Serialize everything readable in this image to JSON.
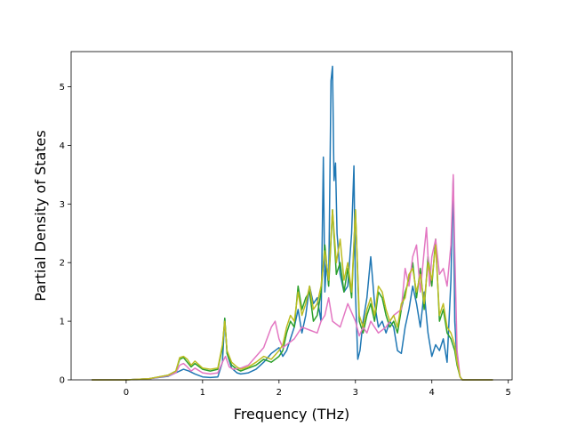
{
  "chart_data": {
    "type": "line",
    "xlabel": "Frequency (THz)",
    "ylabel": "Partial Density of States",
    "xlim": [
      -0.72,
      5.05
    ],
    "ylim": [
      0,
      5.6
    ],
    "xticks": [
      0,
      1,
      2,
      3,
      4,
      5
    ],
    "yticks": [
      0,
      1,
      2,
      3,
      4,
      5
    ],
    "grid": false,
    "series": [
      {
        "color": "#1f77b4",
        "x": [
          -0.45,
          0.0,
          0.3,
          0.55,
          0.7,
          0.75,
          0.82,
          0.9,
          1.0,
          1.1,
          1.2,
          1.26,
          1.29,
          1.32,
          1.38,
          1.45,
          1.5,
          1.6,
          1.7,
          1.8,
          1.9,
          2.0,
          2.05,
          2.1,
          2.15,
          2.2,
          2.25,
          2.3,
          2.35,
          2.4,
          2.45,
          2.5,
          2.55,
          2.58,
          2.6,
          2.62,
          2.65,
          2.68,
          2.7,
          2.72,
          2.74,
          2.76,
          2.8,
          2.85,
          2.9,
          2.95,
          2.98,
          3.0,
          3.03,
          3.06,
          3.1,
          3.15,
          3.2,
          3.25,
          3.3,
          3.35,
          3.4,
          3.45,
          3.5,
          3.55,
          3.6,
          3.65,
          3.7,
          3.75,
          3.8,
          3.85,
          3.9,
          3.95,
          4.0,
          4.05,
          4.1,
          4.15,
          4.2,
          4.25,
          4.28,
          4.3,
          4.33,
          4.37,
          4.4,
          4.5,
          4.8
        ],
        "values": [
          0,
          0,
          0.02,
          0.06,
          0.15,
          0.18,
          0.15,
          0.1,
          0.05,
          0.04,
          0.05,
          0.3,
          1.05,
          0.45,
          0.2,
          0.12,
          0.1,
          0.12,
          0.18,
          0.3,
          0.45,
          0.55,
          0.4,
          0.5,
          0.7,
          0.9,
          1.2,
          0.8,
          1.1,
          1.6,
          1.3,
          1.4,
          1.0,
          3.8,
          1.5,
          2.0,
          1.6,
          5.1,
          5.35,
          3.4,
          3.7,
          2.5,
          1.8,
          1.5,
          1.6,
          2.5,
          3.65,
          1.5,
          0.35,
          0.5,
          1.0,
          1.4,
          2.1,
          1.3,
          0.9,
          1.0,
          0.8,
          1.0,
          0.9,
          0.5,
          0.45,
          0.9,
          1.2,
          1.6,
          1.3,
          0.9,
          1.5,
          0.8,
          0.4,
          0.6,
          0.5,
          0.7,
          0.3,
          1.7,
          3.45,
          1.0,
          0.3,
          0.05,
          0,
          0,
          0
        ]
      },
      {
        "color": "#2ca02c",
        "x": [
          -0.45,
          0.0,
          0.3,
          0.55,
          0.65,
          0.7,
          0.75,
          0.8,
          0.85,
          0.9,
          1.0,
          1.1,
          1.2,
          1.26,
          1.29,
          1.32,
          1.38,
          1.45,
          1.5,
          1.6,
          1.7,
          1.8,
          1.9,
          2.0,
          2.05,
          2.1,
          2.15,
          2.2,
          2.25,
          2.3,
          2.35,
          2.4,
          2.45,
          2.5,
          2.55,
          2.6,
          2.65,
          2.7,
          2.75,
          2.8,
          2.85,
          2.9,
          2.95,
          3.0,
          3.05,
          3.1,
          3.15,
          3.2,
          3.25,
          3.3,
          3.35,
          3.4,
          3.45,
          3.5,
          3.55,
          3.6,
          3.65,
          3.7,
          3.75,
          3.8,
          3.85,
          3.9,
          3.95,
          4.0,
          4.05,
          4.1,
          4.15,
          4.2,
          4.25,
          4.3,
          4.33,
          4.37,
          4.4,
          4.5,
          4.8
        ],
        "values": [
          0,
          0,
          0.02,
          0.08,
          0.15,
          0.35,
          0.38,
          0.3,
          0.22,
          0.28,
          0.18,
          0.15,
          0.18,
          0.55,
          1.05,
          0.45,
          0.25,
          0.18,
          0.15,
          0.2,
          0.25,
          0.35,
          0.3,
          0.4,
          0.5,
          0.8,
          1.0,
          0.9,
          1.6,
          1.2,
          1.4,
          1.5,
          1.0,
          1.1,
          1.5,
          2.3,
          1.6,
          2.9,
          1.8,
          2.0,
          1.5,
          1.9,
          1.4,
          2.9,
          1.0,
          0.8,
          1.1,
          1.3,
          1.0,
          1.5,
          1.4,
          1.1,
          0.9,
          1.0,
          0.8,
          1.2,
          1.5,
          1.7,
          2.0,
          1.4,
          1.9,
          1.2,
          2.1,
          1.6,
          2.4,
          1.0,
          1.2,
          0.8,
          0.7,
          0.5,
          0.25,
          0.05,
          0,
          0,
          0
        ]
      },
      {
        "color": "#e377c2",
        "x": [
          -0.45,
          0.0,
          0.3,
          0.55,
          0.65,
          0.7,
          0.75,
          0.8,
          0.85,
          0.9,
          1.0,
          1.1,
          1.2,
          1.26,
          1.3,
          1.35,
          1.4,
          1.5,
          1.6,
          1.7,
          1.8,
          1.9,
          1.95,
          2.0,
          2.05,
          2.1,
          2.2,
          2.3,
          2.4,
          2.5,
          2.55,
          2.6,
          2.65,
          2.7,
          2.8,
          2.9,
          3.0,
          3.05,
          3.1,
          3.15,
          3.2,
          3.3,
          3.4,
          3.5,
          3.6,
          3.65,
          3.7,
          3.75,
          3.8,
          3.85,
          3.9,
          3.93,
          3.97,
          4.0,
          4.05,
          4.1,
          4.15,
          4.2,
          4.25,
          4.28,
          4.3,
          4.33,
          4.37,
          4.4,
          4.5,
          4.8
        ],
        "values": [
          0,
          0,
          0.02,
          0.07,
          0.12,
          0.25,
          0.28,
          0.22,
          0.15,
          0.2,
          0.12,
          0.1,
          0.12,
          0.3,
          0.4,
          0.22,
          0.18,
          0.2,
          0.25,
          0.4,
          0.55,
          0.9,
          1.0,
          0.7,
          0.55,
          0.6,
          0.7,
          0.9,
          0.85,
          0.8,
          1.0,
          1.1,
          1.4,
          1.0,
          0.9,
          1.3,
          1.0,
          0.75,
          0.9,
          0.8,
          1.0,
          0.8,
          0.9,
          1.1,
          1.2,
          1.9,
          1.6,
          2.1,
          2.3,
          1.5,
          2.2,
          2.6,
          1.6,
          2.1,
          2.4,
          1.8,
          1.9,
          1.6,
          2.3,
          3.5,
          2.2,
          0.5,
          0.05,
          0,
          0,
          0
        ]
      },
      {
        "color": "#bcbd22",
        "x": [
          -0.45,
          0.0,
          0.3,
          0.55,
          0.65,
          0.7,
          0.75,
          0.8,
          0.85,
          0.9,
          1.0,
          1.1,
          1.2,
          1.26,
          1.29,
          1.32,
          1.38,
          1.45,
          1.5,
          1.6,
          1.7,
          1.8,
          1.9,
          2.0,
          2.05,
          2.1,
          2.15,
          2.2,
          2.25,
          2.3,
          2.35,
          2.4,
          2.45,
          2.5,
          2.55,
          2.6,
          2.65,
          2.7,
          2.75,
          2.8,
          2.85,
          2.9,
          2.95,
          3.0,
          3.05,
          3.1,
          3.15,
          3.2,
          3.25,
          3.3,
          3.35,
          3.4,
          3.45,
          3.5,
          3.55,
          3.6,
          3.65,
          3.7,
          3.75,
          3.8,
          3.85,
          3.9,
          3.95,
          4.0,
          4.05,
          4.1,
          4.15,
          4.2,
          4.25,
          4.3,
          4.33,
          4.37,
          4.4,
          4.5,
          4.8
        ],
        "values": [
          0,
          0,
          0.02,
          0.08,
          0.15,
          0.38,
          0.4,
          0.35,
          0.25,
          0.32,
          0.2,
          0.18,
          0.2,
          0.6,
          1.0,
          0.5,
          0.3,
          0.22,
          0.18,
          0.22,
          0.3,
          0.4,
          0.35,
          0.5,
          0.6,
          0.9,
          1.1,
          1.0,
          1.5,
          1.1,
          1.3,
          1.6,
          1.2,
          1.3,
          1.6,
          2.2,
          1.7,
          2.9,
          2.0,
          2.4,
          1.7,
          2.0,
          1.5,
          2.9,
          1.1,
          0.9,
          1.2,
          1.4,
          1.1,
          1.6,
          1.5,
          1.2,
          1.0,
          1.1,
          0.9,
          1.3,
          1.4,
          1.8,
          1.9,
          1.5,
          1.8,
          1.3,
          2.0,
          1.7,
          2.3,
          1.1,
          1.3,
          0.9,
          0.8,
          0.6,
          0.3,
          0.05,
          0,
          0,
          0
        ]
      }
    ]
  }
}
